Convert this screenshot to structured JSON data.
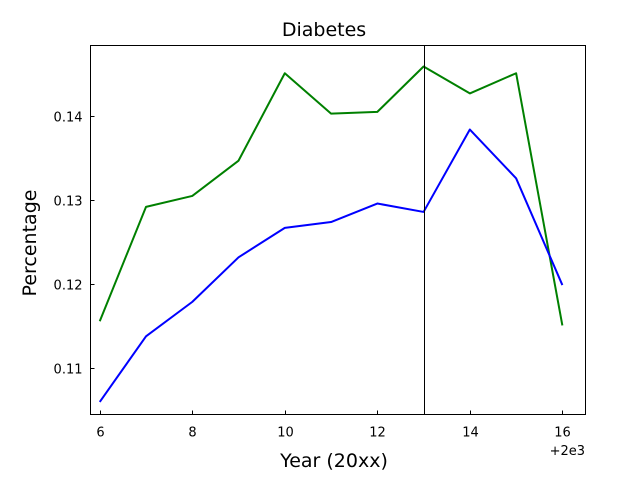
{
  "chart_data": {
    "type": "line",
    "title": "Diabetes",
    "xlabel": "Year (20xx)",
    "ylabel": "Percentage",
    "x_offset_label": "+2e3",
    "xlim": [
      5.8,
      16.5
    ],
    "ylim": [
      0.1045,
      0.1484
    ],
    "x_ticks": [
      6,
      8,
      10,
      12,
      14,
      16
    ],
    "x_tick_labels": [
      "6",
      "8",
      "10",
      "12",
      "14",
      "16"
    ],
    "y_ticks": [
      0.11,
      0.12,
      0.13,
      0.14
    ],
    "y_tick_labels": [
      "0.11",
      "0.12",
      "0.13",
      "0.14"
    ],
    "vertical_line_x": 13,
    "vertical_line_color": "#000000",
    "x": [
      6,
      7,
      8,
      9,
      10,
      11,
      12,
      13,
      14,
      15,
      16
    ],
    "series": [
      {
        "name": "green",
        "color": "#008000",
        "values": [
          0.1156,
          0.1292,
          0.1305,
          0.1347,
          0.1451,
          0.1403,
          0.1405,
          0.1459,
          0.1427,
          0.1451,
          0.1151
        ]
      },
      {
        "name": "blue",
        "color": "#0000ff",
        "values": [
          0.106,
          0.1138,
          0.1179,
          0.1232,
          0.1267,
          0.1274,
          0.1296,
          0.1286,
          0.1384,
          0.1326,
          0.1199
        ]
      }
    ]
  }
}
